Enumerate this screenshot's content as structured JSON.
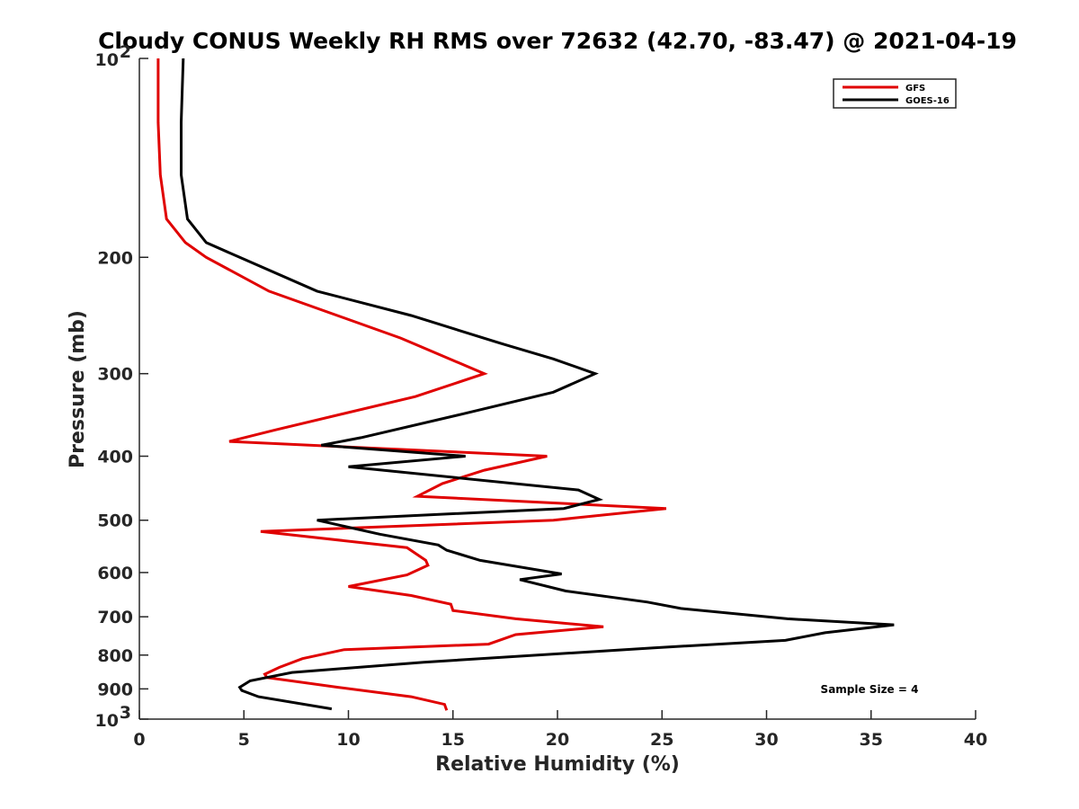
{
  "chart_data": {
    "type": "line",
    "title": "Cloudy CONUS Weekly RH RMS over 72632 (42.70, -83.47) @ 2021-04-19",
    "xlabel": "Relative Humidity (%)",
    "ylabel": "Pressure (mb)",
    "xlim": [
      0,
      40
    ],
    "ylim": [
      100,
      1000
    ],
    "y_scale": "log",
    "y_reversed": true,
    "x_ticks": [
      0,
      5,
      10,
      15,
      20,
      25,
      30,
      35,
      40
    ],
    "y_ticks": [
      {
        "value": 100,
        "base": "10",
        "exp": "2"
      },
      {
        "value": 200,
        "label": "200"
      },
      {
        "value": 300,
        "label": "300"
      },
      {
        "value": 400,
        "label": "400"
      },
      {
        "value": 500,
        "label": "500"
      },
      {
        "value": 600,
        "label": "600"
      },
      {
        "value": 700,
        "label": "700"
      },
      {
        "value": 800,
        "label": "800"
      },
      {
        "value": 900,
        "label": "900"
      },
      {
        "value": 1000,
        "base": "10",
        "exp": "3"
      }
    ],
    "grid": false,
    "legend_position": "top-right",
    "annotation": "Sample Size = 4",
    "series": [
      {
        "name": "GFS",
        "color": "#e00000",
        "points": [
          [
            0.9,
            100
          ],
          [
            0.9,
            125
          ],
          [
            1.0,
            150
          ],
          [
            1.3,
            175
          ],
          [
            2.2,
            190
          ],
          [
            3.2,
            200
          ],
          [
            6.2,
            225
          ],
          [
            12.5,
            265
          ],
          [
            16.5,
            300
          ],
          [
            13.2,
            325
          ],
          [
            6.5,
            365
          ],
          [
            4.3,
            380
          ],
          [
            19.5,
            400
          ],
          [
            16.5,
            420
          ],
          [
            14.5,
            440
          ],
          [
            13.3,
            460
          ],
          [
            25.2,
            480
          ],
          [
            19.8,
            500
          ],
          [
            5.8,
            520
          ],
          [
            12.8,
            550
          ],
          [
            13.7,
            575
          ],
          [
            13.8,
            585
          ],
          [
            12.8,
            605
          ],
          [
            10.0,
            630
          ],
          [
            13.0,
            650
          ],
          [
            14.9,
            670
          ],
          [
            15.0,
            685
          ],
          [
            18.0,
            705
          ],
          [
            22.2,
            725
          ],
          [
            18.0,
            745
          ],
          [
            16.7,
            770
          ],
          [
            9.8,
            785
          ],
          [
            7.8,
            810
          ],
          [
            6.7,
            835
          ],
          [
            6.0,
            855
          ],
          [
            6.1,
            865
          ],
          [
            9.5,
            895
          ],
          [
            13.0,
            925
          ],
          [
            14.6,
            950
          ],
          [
            14.7,
            970
          ]
        ]
      },
      {
        "name": "GOES-16",
        "color": "#000000",
        "points": [
          [
            2.1,
            100
          ],
          [
            2.0,
            125
          ],
          [
            2.0,
            150
          ],
          [
            2.3,
            175
          ],
          [
            3.2,
            190
          ],
          [
            4.8,
            200
          ],
          [
            8.5,
            225
          ],
          [
            13.0,
            245
          ],
          [
            17.3,
            270
          ],
          [
            19.8,
            285
          ],
          [
            21.8,
            300
          ],
          [
            19.8,
            320
          ],
          [
            15.5,
            345
          ],
          [
            10.6,
            375
          ],
          [
            8.7,
            385
          ],
          [
            15.6,
            400
          ],
          [
            10.0,
            415
          ],
          [
            21.0,
            450
          ],
          [
            22.0,
            465
          ],
          [
            20.3,
            480
          ],
          [
            8.5,
            500
          ],
          [
            11.5,
            525
          ],
          [
            14.3,
            545
          ],
          [
            14.7,
            555
          ],
          [
            16.3,
            575
          ],
          [
            20.2,
            603
          ],
          [
            18.2,
            615
          ],
          [
            20.4,
            640
          ],
          [
            24.3,
            665
          ],
          [
            25.9,
            680
          ],
          [
            31.0,
            705
          ],
          [
            36.1,
            720
          ],
          [
            32.8,
            740
          ],
          [
            30.9,
            760
          ],
          [
            24.6,
            780
          ],
          [
            13.6,
            820
          ],
          [
            7.3,
            850
          ],
          [
            5.3,
            875
          ],
          [
            4.8,
            895
          ],
          [
            4.9,
            905
          ],
          [
            5.7,
            925
          ],
          [
            9.2,
            965
          ]
        ]
      }
    ]
  }
}
